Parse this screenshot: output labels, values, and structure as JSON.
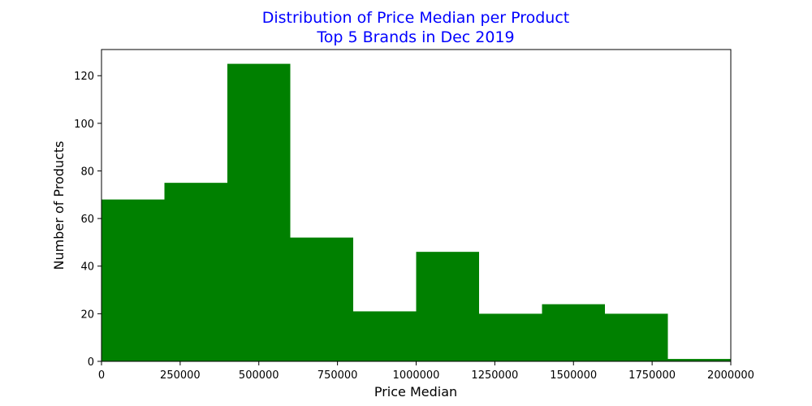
{
  "colors": {
    "bar": "#008000",
    "title": "#0000ff",
    "axis": "#000000"
  },
  "chart_data": {
    "type": "bar",
    "title": "Distribution of Price Median per Product",
    "subtitle": "Top 5 Brands in Dec 2019",
    "xlabel": "Price Median",
    "ylabel": "Number of Products",
    "xlim": [
      0,
      2000000
    ],
    "ylim": [
      0,
      131
    ],
    "grid": false,
    "bins": [
      {
        "x0": 0,
        "x1": 200000,
        "count": 68
      },
      {
        "x0": 200000,
        "x1": 400000,
        "count": 75
      },
      {
        "x0": 400000,
        "x1": 600000,
        "count": 125
      },
      {
        "x0": 600000,
        "x1": 800000,
        "count": 52
      },
      {
        "x0": 800000,
        "x1": 1000000,
        "count": 21
      },
      {
        "x0": 1000000,
        "x1": 1200000,
        "count": 46
      },
      {
        "x0": 1200000,
        "x1": 1400000,
        "count": 20
      },
      {
        "x0": 1400000,
        "x1": 1600000,
        "count": 24
      },
      {
        "x0": 1600000,
        "x1": 1800000,
        "count": 20
      },
      {
        "x0": 1800000,
        "x1": 2000000,
        "count": 1
      }
    ],
    "xticks": [
      {
        "value": 0,
        "label": "0"
      },
      {
        "value": 250000,
        "label": "250000"
      },
      {
        "value": 500000,
        "label": "500000"
      },
      {
        "value": 750000,
        "label": "750000"
      },
      {
        "value": 1000000,
        "label": "1000000"
      },
      {
        "value": 1250000,
        "label": "1250000"
      },
      {
        "value": 1500000,
        "label": "1500000"
      },
      {
        "value": 1750000,
        "label": "1750000"
      },
      {
        "value": 2000000,
        "label": "2000000"
      }
    ],
    "yticks": [
      {
        "value": 0,
        "label": "0"
      },
      {
        "value": 20,
        "label": "20"
      },
      {
        "value": 40,
        "label": "40"
      },
      {
        "value": 60,
        "label": "60"
      },
      {
        "value": 80,
        "label": "80"
      },
      {
        "value": 100,
        "label": "100"
      },
      {
        "value": 120,
        "label": "120"
      }
    ]
  }
}
